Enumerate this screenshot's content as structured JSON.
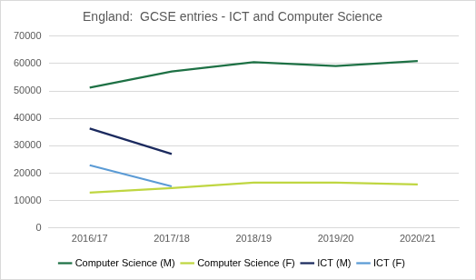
{
  "chart_data": {
    "type": "line",
    "title": "England:  GCSE entries - ICT and Computer Science",
    "categories": [
      "2016/17",
      "2017/18",
      "2018/19",
      "2019/20",
      "2020/21"
    ],
    "series": [
      {
        "name": "Computer Science (M)",
        "color": "#1e7145",
        "values": [
          51200,
          57100,
          60500,
          59100,
          60900
        ]
      },
      {
        "name": "Computer Science (F)",
        "color": "#bfd641",
        "values": [
          12900,
          14600,
          16600,
          16600,
          15900
        ]
      },
      {
        "name": "ICT (M)",
        "color": "#1b2a5e",
        "values": [
          36300,
          27000,
          null,
          null,
          null
        ]
      },
      {
        "name": "ICT (F)",
        "color": "#5b9bd5",
        "values": [
          22900,
          15200,
          null,
          null,
          null
        ]
      }
    ],
    "ylim": [
      0,
      70000
    ],
    "yticks": [
      0,
      10000,
      20000,
      30000,
      40000,
      50000,
      60000,
      70000
    ],
    "grid": true,
    "legend": "bottom"
  }
}
